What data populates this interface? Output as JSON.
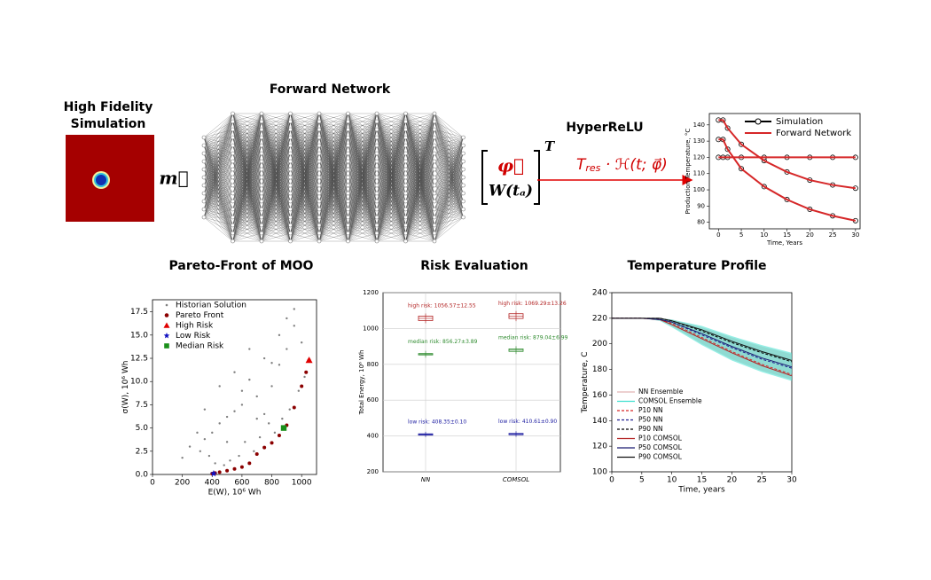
{
  "top": {
    "simulation_title": [
      "High Fidelity",
      "Simulation"
    ],
    "network_title": "Forward Network",
    "input_label": "m⃗",
    "output_vector": [
      "φ⃗",
      "W(tₐ)"
    ],
    "transpose": "T",
    "activation_title": "HyperReLU",
    "activation_formula": [
      "T",
      "res",
      " · ℋ(t; φ⃗)"
    ]
  },
  "inset": {
    "xlabel": "Time, Years",
    "ylabel": "Production Temperature, °C",
    "xlim": [
      -2,
      31
    ],
    "ylim": [
      76,
      147
    ],
    "xticks": [
      0,
      5,
      10,
      15,
      20,
      25,
      30
    ],
    "yticks": [
      80,
      90,
      100,
      110,
      120,
      130,
      140
    ],
    "x": [
      0,
      1,
      2,
      5,
      10,
      15,
      20,
      25,
      30
    ],
    "series": [
      {
        "name": "Simulation",
        "color": "#000000",
        "curves": [
          [
            143,
            143,
            138,
            128,
            118,
            111,
            106,
            103,
            101
          ],
          [
            131,
            131,
            125,
            113,
            102,
            94,
            88,
            84,
            81
          ],
          [
            120,
            120,
            120,
            120,
            120,
            120,
            120,
            120,
            120
          ]
        ]
      },
      {
        "name": "Forward Network",
        "color": "#d62728",
        "curves": [
          [
            143,
            143,
            138,
            128,
            118,
            111,
            106,
            103,
            101
          ],
          [
            131,
            131,
            125,
            113,
            102,
            94,
            88,
            84,
            81
          ],
          [
            120,
            120,
            120,
            120,
            120,
            120,
            120,
            120,
            120
          ]
        ]
      }
    ]
  },
  "pareto": {
    "title": "Pareto-Front of MOO",
    "xlabel": "E(W), 10⁶ Wh",
    "ylabel": "σ(W), 10⁶ Wh",
    "xlim": [
      0,
      1100
    ],
    "ylim": [
      0,
      18.8
    ],
    "xticks": [
      0,
      200,
      400,
      600,
      800,
      1000
    ],
    "yticks": [
      {
        "value": 0,
        "label": "0.0"
      },
      2.5,
      {
        "value": 5,
        "label": "5.0"
      },
      7.5,
      {
        "value": 10,
        "label": "10.0"
      },
      12.5,
      {
        "value": 15,
        "label": "15.0"
      },
      17.5
    ],
    "historian": {
      "name": "Historian Solution",
      "color": "#808080",
      "x": [
        200,
        250,
        300,
        320,
        350,
        380,
        400,
        420,
        450,
        480,
        500,
        520,
        550,
        580,
        600,
        620,
        650,
        680,
        700,
        720,
        750,
        780,
        800,
        820,
        850,
        870,
        900,
        920,
        950,
        980,
        1000,
        1020,
        350,
        450,
        550,
        650,
        750,
        850,
        950,
        600,
        700,
        800,
        900,
        500
      ],
      "y": [
        1.8,
        3.0,
        4.5,
        2.5,
        3.8,
        2.0,
        4.5,
        1.2,
        5.5,
        1.0,
        6.2,
        1.5,
        6.8,
        2.0,
        7.5,
        3.5,
        10.2,
        2.5,
        8.4,
        4.0,
        6.5,
        5.5,
        9.5,
        4.5,
        11.8,
        6.0,
        13.5,
        7.0,
        16.0,
        9.0,
        14.2,
        10.5,
        7.0,
        9.5,
        11.0,
        13.5,
        12.5,
        15.0,
        17.8,
        9.0,
        6.0,
        12.0,
        16.8,
        3.5
      ]
    },
    "front": {
      "name": "Pareto Front",
      "color": "#8b0000",
      "x": [
        400,
        420,
        450,
        500,
        550,
        600,
        650,
        700,
        750,
        800,
        850,
        900,
        950,
        1000,
        1030,
        1050
      ],
      "y": [
        0.1,
        0.15,
        0.25,
        0.4,
        0.6,
        0.8,
        1.2,
        2.2,
        2.9,
        3.4,
        4.2,
        5.3,
        7.2,
        9.5,
        11,
        12.3
      ]
    },
    "markers": [
      {
        "name": "High Risk",
        "color": "#e00000",
        "shape": "triangle",
        "x": 1050,
        "y": 12.3
      },
      {
        "name": "Low Risk",
        "color": "#1010c0",
        "shape": "star",
        "x": 410,
        "y": 0.1
      },
      {
        "name": "Median Risk",
        "color": "#1a8f1a",
        "shape": "square",
        "x": 880,
        "y": 5.0
      }
    ]
  },
  "risk": {
    "title": "Risk Evaluation",
    "ylabel": "Total Energy, 10⁶ Wh",
    "categories": [
      "NN",
      "COMSOL"
    ],
    "ylim": [
      200,
      1200
    ],
    "yticks": [
      200,
      400,
      600,
      800,
      1000,
      1200
    ],
    "grid": true,
    "groups": [
      {
        "color": "#b22222",
        "values": [
          1056.57,
          1069.29
        ],
        "errors": [
          12.55,
          13.26
        ],
        "value_labels": [
          "high risk: 1056.57±12.55",
          "high risk: 1069.29±13.26"
        ]
      },
      {
        "color": "#2e8b2e",
        "values": [
          856.27,
          879.04
        ],
        "errors": [
          3.89,
          6.99
        ],
        "value_labels": [
          "median risk: 856.27±3.89",
          "median risk: 879.04±6.99"
        ]
      },
      {
        "color": "#1a1aa0",
        "values": [
          408.35,
          410.61
        ],
        "errors": [
          0.1,
          0.9
        ],
        "value_labels": [
          "low risk: 408.35±0.10",
          "low risk: 410.61±0.90"
        ]
      }
    ]
  },
  "temperature": {
    "title": "Temperature Profile",
    "xlabel": "Time, years",
    "ylabel": "Temperature, C",
    "xlim": [
      0,
      30
    ],
    "ylim": [
      100,
      240
    ],
    "xticks": [
      0,
      5,
      10,
      15,
      20,
      25,
      30
    ],
    "yticks": [
      100,
      120,
      140,
      160,
      180,
      200,
      220,
      240
    ],
    "x": [
      0,
      5,
      8,
      10,
      15,
      20,
      25,
      30
    ],
    "bands": [
      {
        "name": "NN Ensemble",
        "color": "#e2b4b4",
        "low": [
          220,
          220,
          218,
          214,
          200,
          188,
          179,
          172
        ],
        "high": [
          220,
          220,
          220,
          219,
          213,
          205,
          198,
          192
        ]
      },
      {
        "name": "COMSOL Ensemble",
        "color": "#40e0d0",
        "low": [
          220,
          220,
          218,
          213,
          199,
          187,
          178,
          171
        ],
        "high": [
          220,
          220,
          220,
          219,
          214,
          206,
          199,
          193
        ]
      }
    ],
    "series": [
      {
        "name": "P10 NN",
        "color": "#d62728",
        "dash": true,
        "values": [
          220,
          220,
          219,
          216,
          205,
          194,
          184,
          176
        ]
      },
      {
        "name": "P50 NN",
        "color": "#1f1f8f",
        "dash": true,
        "values": [
          220,
          220,
          219,
          217,
          207,
          197,
          188,
          181
        ]
      },
      {
        "name": "P90 NN",
        "color": "#000000",
        "dash": true,
        "values": [
          220,
          220,
          220,
          218,
          210,
          201,
          193,
          186
        ]
      },
      {
        "name": "P10 COMSOL",
        "color": "#b22222",
        "dash": false,
        "values": [
          220,
          220,
          219,
          215,
          204,
          193,
          183,
          175
        ]
      },
      {
        "name": "P50 COMSOL",
        "color": "#1a1a70",
        "dash": false,
        "values": [
          220,
          220,
          219,
          217,
          208,
          198,
          189,
          182
        ]
      },
      {
        "name": "P90 COMSOL",
        "color": "#111111",
        "dash": false,
        "values": [
          220,
          220,
          220,
          218,
          211,
          202,
          194,
          187
        ]
      }
    ]
  }
}
